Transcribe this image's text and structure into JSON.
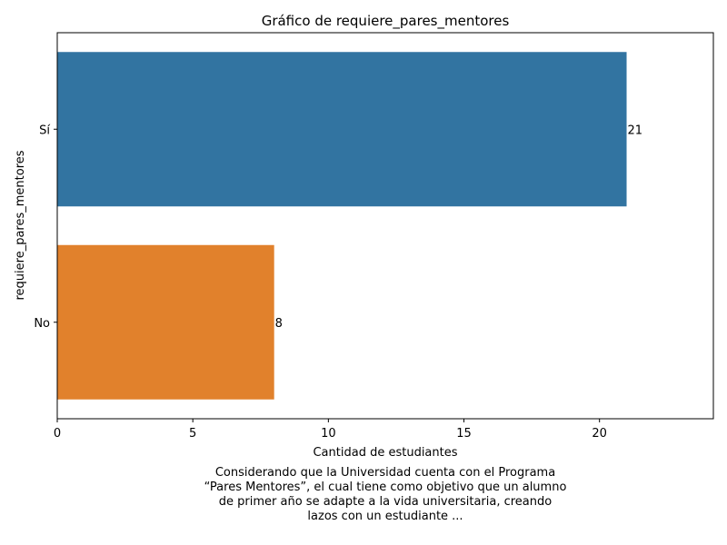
{
  "chart_data": {
    "type": "bar",
    "orientation": "horizontal",
    "title": "Gráfico de requiere_pares_mentores",
    "xlabel": "Cantidad de estudiantes",
    "ylabel": "requiere_pares_mentores",
    "categories": [
      "Sí",
      "No"
    ],
    "values": [
      21,
      8
    ],
    "data_labels": [
      "21",
      "8"
    ],
    "colors": [
      "#3274a1",
      "#e1812c"
    ],
    "xlim": [
      0,
      24.2
    ],
    "xticks": [
      0,
      5,
      10,
      15,
      20
    ],
    "grid": false,
    "legend": "none"
  },
  "caption": {
    "lines": [
      "Considerando que la Universidad cuenta con el Programa",
      "“Pares Mentores”, el cual tiene como objetivo que un alumno",
      "de primer año se adapte a la vida universitaria, creando",
      "lazos con un estudiante ..."
    ]
  }
}
